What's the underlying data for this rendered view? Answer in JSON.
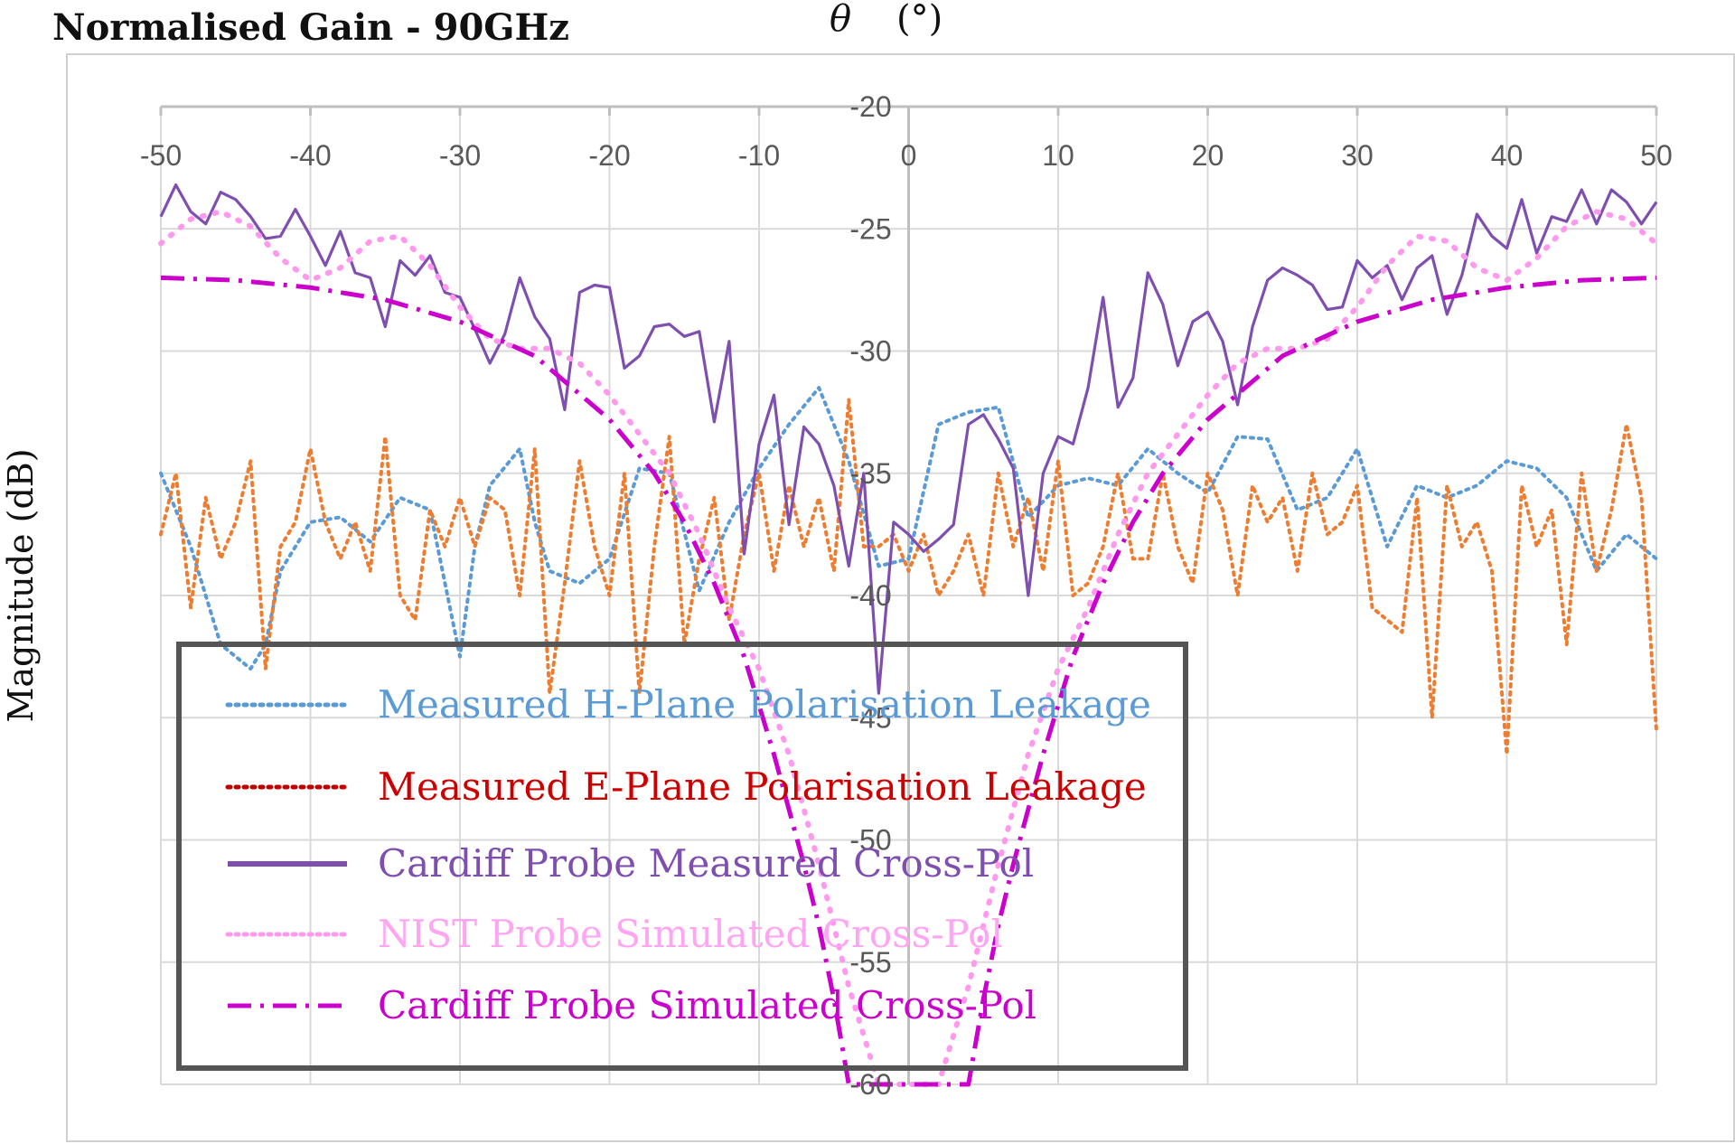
{
  "chart_data": {
    "type": "line",
    "title": "Normalised Gain - 90GHz",
    "xlabel_symbol": "θ",
    "xlabel_unit": "(°)",
    "ylabel": "Magnitude (dB)",
    "xlim": [
      -50,
      50
    ],
    "ylim": [
      -60,
      -20
    ],
    "x_ticks": [
      -50,
      -40,
      -30,
      -20,
      -10,
      0,
      10,
      20,
      30,
      40,
      50
    ],
    "y_ticks": [
      -20,
      -25,
      -30,
      -35,
      -40,
      -45,
      -50,
      -55,
      -60
    ],
    "grid": true,
    "legend_position": "bottom-left, boxed",
    "series": [
      {
        "name": "Measured H-Plane Polarisation Leakage",
        "color": "#5B9BD5",
        "style": "dotted",
        "x": [
          -50,
          -48,
          -46,
          -44,
          -43,
          -42,
          -40,
          -38,
          -36,
          -34,
          -32,
          -30,
          -29,
          -28,
          -26,
          -25,
          -24,
          -22,
          -20,
          -18,
          -16,
          -14,
          -12,
          -10,
          -8,
          -6,
          -4,
          -2,
          0,
          2,
          4,
          6,
          8,
          10,
          12,
          14,
          16,
          18,
          20,
          22,
          24,
          26,
          28,
          30,
          32,
          34,
          36,
          38,
          40,
          42,
          44,
          46,
          48,
          50
        ],
        "y": [
          -35,
          -38,
          -42,
          -43,
          -42,
          -39,
          -37,
          -36.8,
          -37.8,
          -36,
          -36.5,
          -42.5,
          -38,
          -35.5,
          -34,
          -37,
          -39,
          -39.5,
          -38.5,
          -34.8,
          -35,
          -39.8,
          -37,
          -34.8,
          -33,
          -31.5,
          -34.5,
          -38.8,
          -38.5,
          -33,
          -32.5,
          -32.3,
          -36.8,
          -35.5,
          -35.2,
          -35.5,
          -34,
          -35,
          -35.8,
          -33.5,
          -33.6,
          -36.5,
          -36,
          -34,
          -38,
          -35.5,
          -36,
          -35.5,
          -34.5,
          -34.8,
          -36,
          -39,
          -37.5,
          -38.5
        ]
      },
      {
        "name": "Measured E-Plane Polarisation Leakage",
        "color": "#C00000",
        "style": "dotted",
        "x": [
          -50,
          -49,
          -48,
          -47,
          -46,
          -45,
          -44,
          -43,
          -42,
          -41,
          -40,
          -39,
          -38,
          -37,
          -36,
          -35,
          -34,
          -33,
          -32,
          -31,
          -30,
          -29,
          -28,
          -27,
          -26,
          -25,
          -24,
          -23,
          -22,
          -21,
          -20,
          -19,
          -18,
          -17,
          -16,
          -15,
          -14,
          -13,
          -12,
          -11,
          -10,
          -9,
          -8,
          -7,
          -6,
          -5,
          -4,
          -3,
          -2,
          -1,
          0,
          1,
          2,
          3,
          4,
          5,
          6,
          7,
          8,
          9,
          10,
          11,
          12,
          13,
          14,
          15,
          16,
          17,
          18,
          19,
          20,
          21,
          22,
          23,
          24,
          25,
          26,
          27,
          28,
          29,
          30,
          31,
          32,
          33,
          34,
          35,
          36,
          37,
          38,
          39,
          40,
          41,
          42,
          43,
          44,
          45,
          46,
          47,
          48,
          49,
          50
        ],
        "y": [
          -37.5,
          -35,
          -40.5,
          -36,
          -38.5,
          -37,
          -34.5,
          -43,
          -38,
          -37,
          -34,
          -37,
          -38.5,
          -37,
          -39,
          -33.5,
          -40,
          -41,
          -36.5,
          -38,
          -36,
          -38,
          -36,
          -36.5,
          -40,
          -34,
          -44,
          -39.5,
          -34.5,
          -38,
          -40,
          -35,
          -44,
          -38,
          -33.5,
          -42,
          -38.5,
          -36,
          -41,
          -37.5,
          -35,
          -39,
          -35.5,
          -38,
          -36,
          -39,
          -32,
          -38,
          -38,
          -37.5,
          -39,
          -37.5,
          -40,
          -39,
          -37.5,
          -40,
          -35,
          -38,
          -36,
          -39,
          -34.5,
          -40,
          -39.5,
          -38,
          -35,
          -38.5,
          -38.5,
          -35,
          -38,
          -39.5,
          -35,
          -36.5,
          -40,
          -35.5,
          -37,
          -36,
          -39,
          -35,
          -37.5,
          -37,
          -35.5,
          -40.5,
          -41,
          -41.5,
          -36,
          -45,
          -35.5,
          -38,
          -37,
          -39,
          -46.5,
          -35.5,
          -38,
          -36.5,
          -42,
          -35,
          -39,
          -36.5,
          -33,
          -36,
          -45.5
        ]
      },
      {
        "name": "Cardiff Probe Measured Cross-Pol",
        "color": "#7F4FB0",
        "style": "solid",
        "x": [
          -50,
          -49,
          -48,
          -47,
          -46,
          -45,
          -44,
          -43,
          -42,
          -41,
          -40,
          -39,
          -38,
          -37,
          -36,
          -35,
          -34,
          -33,
          -32,
          -31,
          -30,
          -29,
          -28,
          -27,
          -26,
          -25,
          -24,
          -23,
          -22,
          -21,
          -20,
          -19,
          -18,
          -17,
          -16,
          -15,
          -14,
          -13,
          -12,
          -11,
          -10,
          -9,
          -8,
          -7,
          -6,
          -5,
          -4,
          -3,
          -2,
          -1,
          0,
          1,
          2,
          3,
          4,
          5,
          6,
          7,
          8,
          9,
          10,
          11,
          12,
          13,
          14,
          15,
          16,
          17,
          18,
          19,
          20,
          21,
          22,
          23,
          24,
          25,
          26,
          27,
          28,
          29,
          30,
          31,
          32,
          33,
          34,
          35,
          36,
          37,
          38,
          39,
          40,
          41,
          42,
          43,
          44,
          45,
          46,
          47,
          48,
          49,
          50
        ],
        "y": [
          -24.5,
          -23.2,
          -24.3,
          -24.8,
          -23.5,
          -23.8,
          -24.5,
          -25.4,
          -25.3,
          -24.2,
          -25.3,
          -26.5,
          -25.1,
          -26.8,
          -27,
          -29,
          -26.3,
          -26.9,
          -26.1,
          -27.6,
          -27.8,
          -29.1,
          -30.5,
          -29.3,
          -27,
          -28.6,
          -29.5,
          -32.4,
          -27.6,
          -27.3,
          -27.4,
          -30.7,
          -30.2,
          -29,
          -28.9,
          -29.4,
          -29.2,
          -32.9,
          -29.6,
          -38.3,
          -33.8,
          -31.8,
          -37.1,
          -33.1,
          -33.8,
          -35.5,
          -38.8,
          -35,
          -44,
          -37,
          -37.5,
          -38.2,
          -37.7,
          -37.1,
          -33,
          -32.6,
          -33.6,
          -34.8,
          -40,
          -35,
          -33.5,
          -33.8,
          -31.5,
          -27.8,
          -32.3,
          -31.1,
          -26.8,
          -28.1,
          -30.6,
          -28.8,
          -28.4,
          -29.6,
          -32.2,
          -29,
          -27.1,
          -26.6,
          -26.9,
          -27.3,
          -28.3,
          -28.2,
          -26.3,
          -27,
          -26.5,
          -27.9,
          -26.6,
          -26.1,
          -28.5,
          -26.9,
          -24.4,
          -25.3,
          -25.8,
          -23.8,
          -26,
          -24.5,
          -24.7,
          -23.4,
          -24.8,
          -23.4,
          -23.9,
          -24.8,
          -23.9
        ]
      },
      {
        "name": "NIST Probe Simulated Cross-Pol",
        "color": "#FF99EE",
        "style": "dotted",
        "x": [
          -50,
          -48,
          -46,
          -44,
          -42,
          -40,
          -38,
          -36,
          -34,
          -32,
          -30,
          -28,
          -26,
          -24,
          -22,
          -20,
          -18,
          -16,
          -14,
          -12,
          -10,
          -8,
          -6,
          -4,
          -2,
          2,
          4,
          6,
          8,
          10,
          12,
          14,
          16,
          18,
          20,
          22,
          24,
          26,
          28,
          30,
          32,
          34,
          36,
          38,
          40,
          42,
          44,
          46,
          48,
          50
        ],
        "y": [
          -25.6,
          -24.6,
          -24.3,
          -24.9,
          -26.2,
          -27.1,
          -26.6,
          -25.5,
          -25.3,
          -26.5,
          -28.2,
          -29.5,
          -29.9,
          -29.9,
          -30.5,
          -31.8,
          -33.4,
          -35,
          -37.5,
          -40.5,
          -43,
          -46.5,
          -51,
          -56,
          -60,
          -60,
          -56,
          -51,
          -46.5,
          -43,
          -40.5,
          -37.5,
          -35,
          -33.4,
          -31.8,
          -30.5,
          -29.9,
          -29.9,
          -29.5,
          -28.2,
          -26.5,
          -25.3,
          -25.5,
          -26.6,
          -27.1,
          -26.2,
          -24.9,
          -24.3,
          -24.6,
          -25.6
        ]
      },
      {
        "name": "Cardiff Probe Simulated Cross-Pol",
        "color": "#CC00CC",
        "style": "dash-dot",
        "x": [
          -50,
          -45,
          -40,
          -35,
          -30,
          -25,
          -20,
          -17,
          -15,
          -13,
          -11,
          -9,
          -7,
          -6,
          -5,
          -4,
          4,
          5,
          6,
          7,
          9,
          11,
          13,
          15,
          17,
          20,
          25,
          30,
          35,
          40,
          45,
          50
        ],
        "y": [
          -27,
          -27.1,
          -27.4,
          -27.9,
          -28.8,
          -30.2,
          -32.8,
          -35,
          -37,
          -39.5,
          -42.5,
          -46.5,
          -51,
          -53.5,
          -56.5,
          -60,
          -60,
          -56.5,
          -53.5,
          -51,
          -46.5,
          -42.5,
          -39.5,
          -37,
          -35,
          -32.8,
          -30.2,
          -28.8,
          -27.9,
          -27.4,
          -27.1,
          -27
        ]
      }
    ]
  }
}
